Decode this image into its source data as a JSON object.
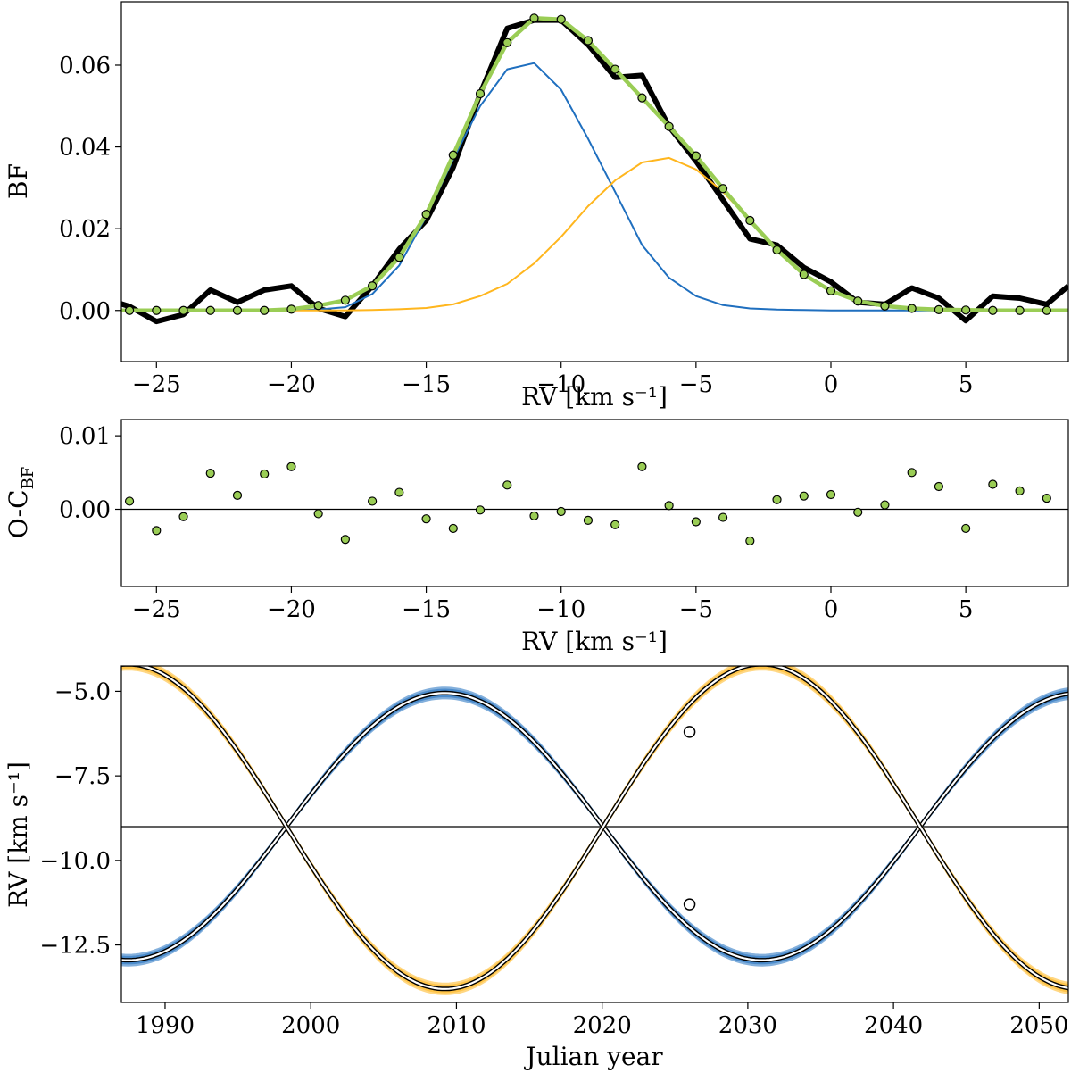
{
  "colors": {
    "observed": "#000000",
    "fit": "#9acd55",
    "component_blue": "#1f6fbf",
    "component_orange": "#ffb61e",
    "residual_point": "#9acd55"
  },
  "chart_data": [
    {
      "type": "line",
      "xlabel": "RV [km s⁻¹]",
      "ylabel": "BF",
      "xlim": [
        -26.3,
        8.8
      ],
      "ylim": [
        -0.0125,
        0.0755
      ],
      "xticks": [
        -25,
        -20,
        -15,
        -10,
        -5,
        0,
        5
      ],
      "xtick_labels": [
        "−25",
        "−20",
        "−15",
        "−10",
        "−5",
        "0",
        "5"
      ],
      "yticks": [
        0.0,
        0.02,
        0.04,
        0.06
      ],
      "ytick_labels": [
        "0.00",
        "0.02",
        "0.04",
        "0.06"
      ],
      "series": [
        {
          "key": "observed",
          "x": [
            -26.5,
            -26,
            -25,
            -24,
            -23,
            -22,
            -21,
            -20,
            -19,
            -18,
            -17,
            -16,
            -15,
            -14,
            -13,
            -12,
            -11,
            -10,
            -9,
            -8,
            -7,
            -6,
            -5,
            -4,
            -3,
            -2,
            -1,
            0,
            1,
            2,
            3,
            4,
            5,
            6,
            7,
            8,
            8.8
          ],
          "values": [
            0.002,
            0.001,
            -0.0027,
            -0.001,
            0.005,
            0.002,
            0.005,
            0.006,
            0.0005,
            -0.0015,
            0.006,
            0.015,
            0.022,
            0.035,
            0.053,
            0.069,
            0.071,
            0.071,
            0.065,
            0.057,
            0.0575,
            0.045,
            0.0365,
            0.027,
            0.0175,
            0.016,
            0.0105,
            0.007,
            0.002,
            0.0015,
            0.0055,
            0.003,
            -0.0025,
            0.0035,
            0.003,
            0.0015,
            0.006
          ]
        },
        {
          "key": "fit",
          "x": [
            -26.3,
            -26,
            -25,
            -24,
            -23,
            -22,
            -21,
            -20,
            -19,
            -18,
            -17,
            -16,
            -15,
            -14,
            -13,
            -12,
            -11,
            -10,
            -9,
            -8,
            -7,
            -6,
            -5,
            -4,
            -3,
            -2,
            -1,
            0,
            1,
            2,
            3,
            4,
            5,
            6,
            7,
            8,
            8.8
          ],
          "values": [
            0.0,
            0.0,
            0.0,
            0.0,
            0.0,
            0.0,
            0.0,
            0.0003,
            0.0012,
            0.0025,
            0.006,
            0.013,
            0.0235,
            0.038,
            0.053,
            0.0655,
            0.0715,
            0.0712,
            0.066,
            0.059,
            0.052,
            0.045,
            0.0378,
            0.0298,
            0.022,
            0.0148,
            0.0088,
            0.0048,
            0.0023,
            0.0011,
            0.0005,
            0.0002,
            0.0001,
            0.0,
            0.0,
            0.0,
            0.0
          ]
        },
        {
          "key": "component_blue",
          "x": [
            -26.3,
            -25,
            -24,
            -23,
            -22,
            -21,
            -20,
            -19,
            -18,
            -17,
            -16,
            -15,
            -14,
            -13,
            -12,
            -11,
            -10,
            -9,
            -8,
            -7,
            -6,
            -5,
            -4,
            -3,
            -2,
            -1,
            0,
            1,
            2,
            3,
            4,
            5,
            6,
            7,
            8,
            8.8
          ],
          "values": [
            0.0,
            0.0,
            0.0,
            0.0,
            0.0,
            0.0,
            0.0,
            0.0002,
            0.0008,
            0.004,
            0.011,
            0.023,
            0.037,
            0.05,
            0.059,
            0.0605,
            0.054,
            0.042,
            0.029,
            0.016,
            0.008,
            0.0035,
            0.0013,
            0.0005,
            0.0002,
            0.0001,
            0.0,
            0.0,
            0.0,
            0.0,
            0.0,
            0.0,
            0.0,
            0.0,
            0.0,
            0.0
          ]
        },
        {
          "key": "component_orange",
          "x": [
            -26.3,
            -25,
            -24,
            -23,
            -22,
            -21,
            -20,
            -19,
            -18,
            -17,
            -16,
            -15,
            -14,
            -13,
            -12,
            -11,
            -10,
            -9,
            -8,
            -7,
            -6,
            -5,
            -4,
            -3,
            -2,
            -1,
            0,
            1,
            2,
            3,
            4,
            5,
            6,
            7,
            8,
            8.8
          ],
          "values": [
            0.0,
            0.0,
            0.0,
            0.0,
            0.0,
            0.0,
            0.0,
            0.0,
            0.0,
            0.0001,
            0.0003,
            0.0006,
            0.0015,
            0.0035,
            0.0065,
            0.0115,
            0.018,
            0.0255,
            0.0318,
            0.0362,
            0.0373,
            0.0345,
            0.029,
            0.022,
            0.0148,
            0.0088,
            0.0047,
            0.0022,
            0.0009,
            0.0003,
            0.0001,
            0.0,
            0.0,
            0.0,
            0.0,
            0.0
          ]
        }
      ]
    },
    {
      "type": "scatter",
      "xlabel": "RV [km s⁻¹]",
      "ylabel": "O-C",
      "ylabel_sub": "BF",
      "xlim": [
        -26.3,
        8.8
      ],
      "ylim": [
        -0.0105,
        0.0122
      ],
      "xticks": [
        -25,
        -20,
        -15,
        -10,
        -5,
        0,
        5
      ],
      "xtick_labels": [
        "−25",
        "−20",
        "−15",
        "−10",
        "−5",
        "0",
        "5"
      ],
      "yticks": [
        0.0,
        0.01
      ],
      "ytick_labels": [
        "0.00",
        "0.01"
      ],
      "zero_line": 0.0,
      "x": [
        -26,
        -25,
        -24,
        -23,
        -22,
        -21,
        -20,
        -19,
        -18,
        -17,
        -16,
        -15,
        -14,
        -13,
        -12,
        -11,
        -10,
        -9,
        -8,
        -7,
        -6,
        -5,
        -4,
        -3,
        -2,
        -1,
        0,
        1,
        2,
        3,
        4,
        5,
        6,
        7,
        8
      ],
      "values": [
        0.0011,
        -0.0029,
        -0.001,
        0.0049,
        0.0019,
        0.0048,
        0.0058,
        -0.0006,
        -0.0041,
        0.0011,
        0.0023,
        -0.0013,
        -0.0026,
        -0.0001,
        0.0033,
        -0.0009,
        -0.0003,
        -0.0015,
        -0.0021,
        0.0058,
        0.0005,
        -0.0017,
        -0.0011,
        -0.0043,
        0.0013,
        0.0018,
        0.002,
        -0.0004,
        0.0006,
        0.005,
        0.0031,
        -0.0026,
        0.0034,
        0.0025,
        0.0015
      ]
    },
    {
      "type": "line",
      "xlabel": "Julian year",
      "ylabel": "RV [km s⁻¹]",
      "xlim": [
        1987,
        2052
      ],
      "ylim": [
        -14.2,
        -4.25
      ],
      "xticks": [
        1990,
        2000,
        2010,
        2020,
        2030,
        2040,
        2050
      ],
      "xtick_labels": [
        "1990",
        "2000",
        "2010",
        "2020",
        "2030",
        "2040",
        "2050"
      ],
      "yticks": [
        -5.0,
        -7.5,
        -10.0,
        -12.5
      ],
      "ytick_labels": [
        "−5.0",
        "−7.5",
        "−10.0",
        "−12.5"
      ],
      "systemic_velocity": -9.0,
      "orbit": {
        "period_years": 43.5,
        "max_year": 2009.2,
        "amplitude_blue": 3.95,
        "amplitude_orange": 4.8
      },
      "observations": [
        {
          "year": 2026.0,
          "rv": -6.2,
          "component": "component_orange"
        },
        {
          "year": 2026.0,
          "rv": -11.3,
          "component": "component_blue"
        }
      ]
    }
  ]
}
